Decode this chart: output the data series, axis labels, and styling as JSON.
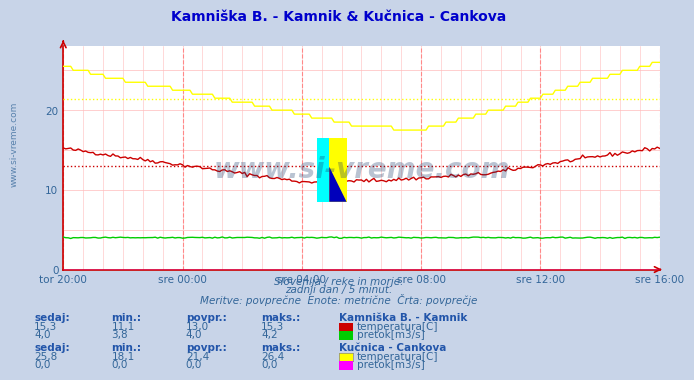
{
  "title": "Kamniška B. - Kamnik & Kučnica - Cankova",
  "title_color": "#0000cc",
  "bg_color": "#c8d4e8",
  "plot_bg_color": "#ffffff",
  "text_color": "#336699",
  "header_color": "#2255aa",
  "subtitle_lines": [
    "Slovenija / reke in morje.",
    "zadnji dan / 5 minut.",
    "Meritve: povprečne  Enote: metrične  Črta: povprečje"
  ],
  "x_tick_labels": [
    "tor 20:00",
    "sre 00:00",
    "sre 04:00",
    "sre 08:00",
    "sre 12:00",
    "sre 16:00"
  ],
  "x_tick_positions": [
    0,
    48,
    96,
    144,
    192,
    240
  ],
  "y_ticks": [
    0,
    10,
    20
  ],
  "avg_kamnik_temp": 13.0,
  "avg_cankova_temp": 21.4,
  "legend1_title": "Kamniška B. - Kamnik",
  "legend2_title": "Kučnica - Cankova",
  "headers": [
    "sedaj:",
    "min.:",
    "povpr.:",
    "maks.:"
  ],
  "kamnik_temp_stats": [
    15.3,
    11.1,
    13.0,
    15.3
  ],
  "kamnik_pretok_stats": [
    4.0,
    3.8,
    4.0,
    4.2
  ],
  "cankova_temp_stats": [
    25.8,
    18.1,
    21.4,
    26.4
  ],
  "cankova_pretok_stats": [
    0.0,
    0.0,
    0.0,
    0.0
  ],
  "color_kamnik_temp": "#cc0000",
  "color_kamnik_pretok": "#00cc00",
  "color_cankova_temp": "#ffff00",
  "color_cankova_pretok": "#ff00ff",
  "watermark": "www.si-vreme.com",
  "watermark_color": "#1a3a6a",
  "watermark_alpha": 0.3,
  "left_text": "www.si-vreme.com"
}
